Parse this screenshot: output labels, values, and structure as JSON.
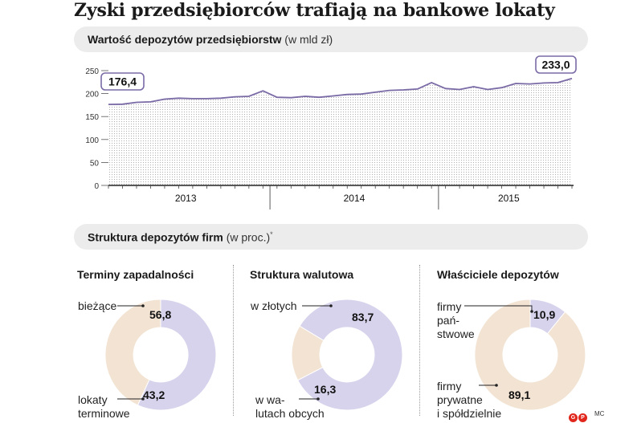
{
  "title": "Zyski przedsiębiorców  trafiają na bankowe lokaty",
  "line_section": {
    "heading": "Wartość depozytów przedsiębiorstw",
    "unit": "(w mld zł)"
  },
  "donut_section": {
    "heading": "Struktura depozytów firm",
    "unit": "(w proc.)",
    "footnote_mark": "*"
  },
  "colors": {
    "line": "#7a6aa6",
    "purple": "#d8d3ec",
    "beige": "#f2e3d2",
    "band": "#ececec",
    "dots": "#b0b0b0"
  },
  "chart_data": [
    {
      "type": "line",
      "title": "Wartość depozytów przedsiębiorstw",
      "ylabel": "(w mld zł)",
      "ylim": [
        0,
        250
      ],
      "yticks": [
        "0",
        "50",
        "100",
        "150",
        "200",
        "250"
      ],
      "xlabels": [
        "2013",
        "2014",
        "2015"
      ],
      "first_label": "176,4",
      "last_label": "233,0",
      "x": [
        1,
        2,
        3,
        4,
        5,
        6,
        7,
        8,
        9,
        10,
        11,
        12,
        13,
        14,
        15,
        16,
        17,
        18,
        19,
        20,
        21,
        22,
        23,
        24,
        25,
        26,
        27,
        28,
        29,
        30,
        31,
        32,
        33,
        34
      ],
      "values": [
        176.4,
        177,
        181,
        182,
        188,
        190,
        189,
        189,
        190,
        193,
        194,
        206,
        192,
        191,
        194,
        192,
        195,
        198,
        199,
        203,
        207,
        208,
        210,
        224,
        211,
        209,
        215,
        209,
        213,
        222,
        221,
        223,
        224,
        233.0
      ],
      "grid": false
    },
    {
      "type": "pie",
      "title": "Terminy zapadalności",
      "series": [
        {
          "name": "bieżące",
          "value": 56.8,
          "label": "56,8"
        },
        {
          "name": "lokaty terminowe",
          "value": 43.2,
          "label": "43,2"
        }
      ]
    },
    {
      "type": "pie",
      "title": "Struktura walutowa",
      "series": [
        {
          "name": "w złotych",
          "value": 83.7,
          "label": "83,7"
        },
        {
          "name": "w walutach obcych",
          "value": 16.3,
          "label": "16,3"
        }
      ]
    },
    {
      "type": "pie",
      "title": "Właściciele depozytów",
      "series": [
        {
          "name": "firmy państwowe",
          "value": 10.9,
          "label": "10,9"
        },
        {
          "name": "firmy prywatne i spółdzielnie",
          "value": 89.1,
          "label": "89,1"
        }
      ]
    }
  ],
  "donut_labels": {
    "d1": {
      "a": "bieżące",
      "b1": "lokaty",
      "b2": "terminowe"
    },
    "d2": {
      "a": "w złotych",
      "b1": "w wa-",
      "b2": "lutach obcych"
    },
    "d3": {
      "a1": "firmy",
      "a2": "pań-",
      "a3": "stwowe",
      "b1": "firmy",
      "b2": "prywatne",
      "b3": "i spółdzielnie"
    }
  },
  "credit": {
    "logo": "GP",
    "author": "MC"
  }
}
